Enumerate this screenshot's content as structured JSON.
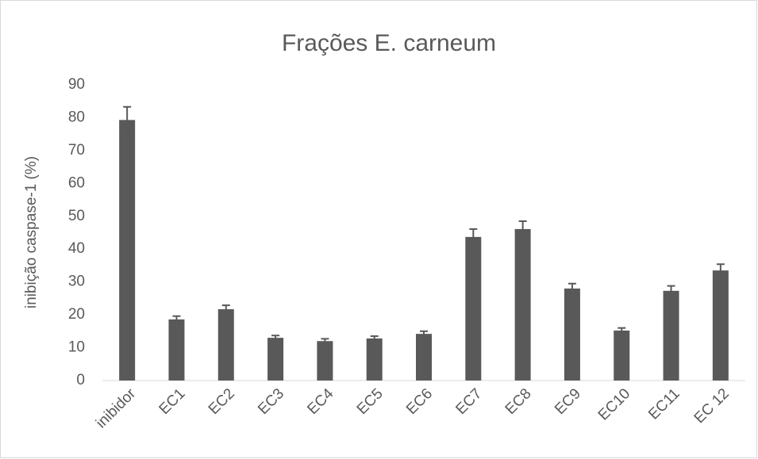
{
  "chart_data": {
    "type": "bar",
    "title": "Frações E. carneum",
    "y_label": "inibição caspase-1 (%)",
    "categories": [
      "inibidor",
      "EC1",
      "EC2",
      "EC3",
      "EC4",
      "EC5",
      "EC6",
      "EC7",
      "EC8",
      "EC9",
      "EC10",
      "EC11",
      "EC 12"
    ],
    "values": [
      79.3,
      18.6,
      21.7,
      13,
      12,
      12.8,
      14.2,
      43.7,
      46.1,
      28,
      15.2,
      27.3,
      33.5
    ],
    "errors": [
      4,
      1,
      1.2,
      0.7,
      0.7,
      0.7,
      0.8,
      2.4,
      2.4,
      1.5,
      0.8,
      1.5,
      1.9
    ],
    "color": "#595959",
    "ylim": [
      0,
      90
    ],
    "yticks": [
      0,
      10,
      20,
      30,
      40,
      50,
      60,
      70,
      80,
      90
    ],
    "grid": false
  }
}
